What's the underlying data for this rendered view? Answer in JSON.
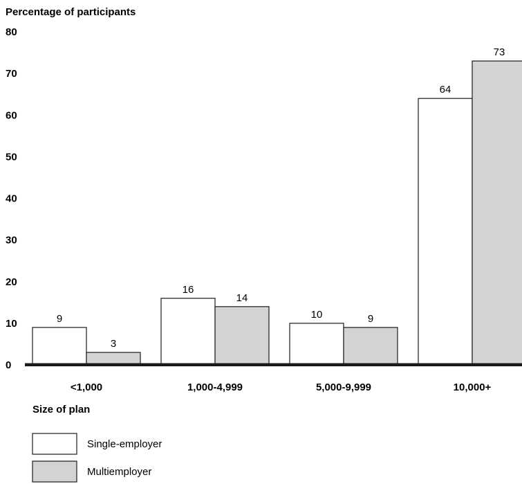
{
  "chart_data": {
    "type": "bar",
    "ylabel": "Percentage of participants",
    "xlabel": "Size of plan",
    "ylim": [
      0,
      80
    ],
    "yticks": [
      0,
      10,
      20,
      30,
      40,
      50,
      60,
      70,
      80
    ],
    "grid": false,
    "legend_position": "bottom-left",
    "categories": [
      "<1,000",
      "1,000-4,999",
      "5,000-9,999",
      "10,000+"
    ],
    "series": [
      {
        "name": "Single-employer",
        "color": "#ffffff",
        "values": [
          9,
          16,
          10,
          64
        ]
      },
      {
        "name": "Multiemployer",
        "color": "#d3d3d3",
        "values": [
          3,
          14,
          9,
          73
        ]
      }
    ]
  }
}
